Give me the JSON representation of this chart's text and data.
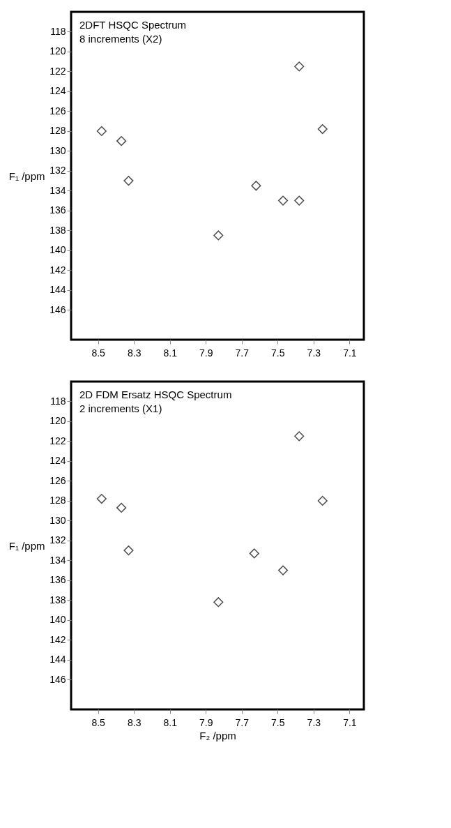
{
  "chart_data": [
    {
      "type": "scatter",
      "title": "2DFT HSQC Spectrum",
      "subtitle": "8 increments (X2)",
      "ylabel": "F₁ /ppm",
      "x": [
        8.48,
        8.37,
        8.33,
        7.83,
        7.62,
        7.47,
        7.38,
        7.38,
        7.25
      ],
      "values": [
        128,
        129,
        133,
        138.5,
        133.5,
        135,
        121.5,
        135,
        127.8
      ],
      "color": "#000000",
      "marker": "diamond",
      "grid": false,
      "xlim": [
        8.65,
        7.02
      ],
      "xticks": [
        8.5,
        8.3,
        8.1,
        7.9,
        7.7,
        7.5,
        7.3,
        7.1
      ],
      "ylim": [
        149,
        116
      ],
      "yticks": [
        118,
        120,
        122,
        124,
        126,
        128,
        130,
        132,
        134,
        136,
        138,
        140,
        142,
        144,
        146
      ]
    },
    {
      "type": "scatter",
      "title": "2D FDM Ersatz HSQC Spectrum",
      "subtitle": "2 increments (X1)",
      "ylabel": "F₁ /ppm",
      "xlabel": "F₂ /ppm",
      "x": [
        8.48,
        8.37,
        8.33,
        7.83,
        7.63,
        7.47,
        7.38,
        7.25
      ],
      "values": [
        127.8,
        128.7,
        133,
        138.2,
        133.3,
        135,
        121.5,
        128
      ],
      "color": "#000000",
      "marker": "diamond",
      "grid": false,
      "xlim": [
        8.65,
        7.02
      ],
      "xticks": [
        8.5,
        8.3,
        8.1,
        7.9,
        7.7,
        7.5,
        7.3,
        7.1
      ],
      "ylim": [
        149,
        116
      ],
      "yticks": [
        118,
        120,
        122,
        124,
        126,
        128,
        130,
        132,
        134,
        136,
        138,
        140,
        142,
        144,
        146
      ]
    }
  ]
}
